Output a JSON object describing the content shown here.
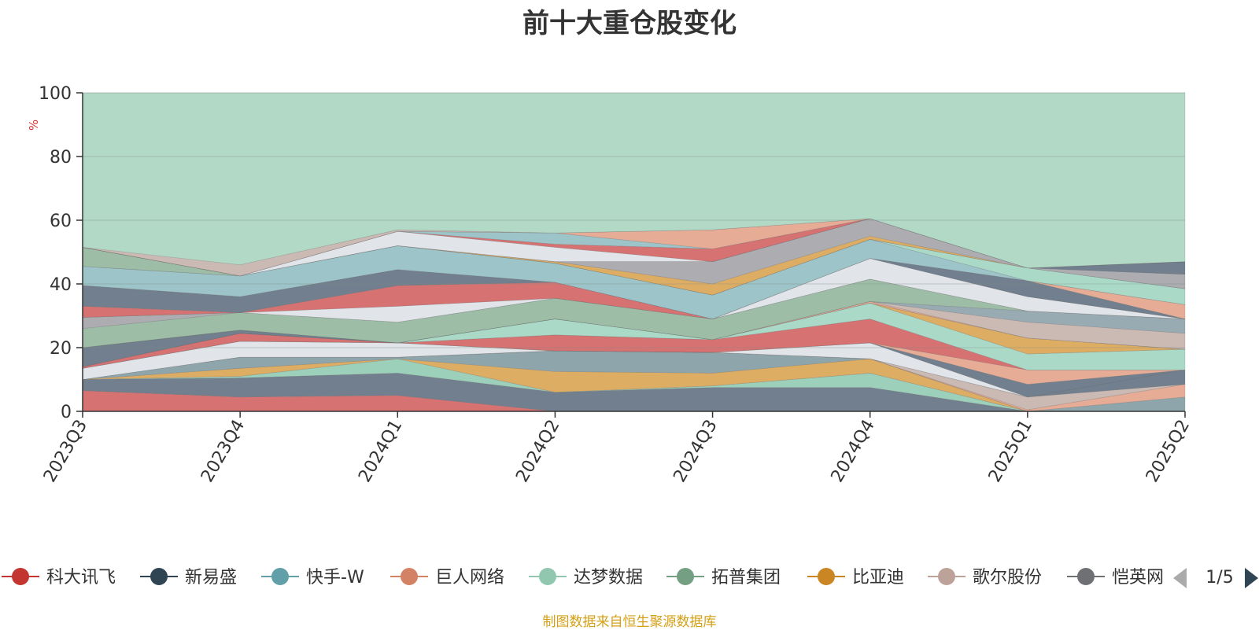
{
  "chart_data": {
    "type": "area",
    "title": "前十大重仓股变化",
    "ylabel": "%",
    "ylim": [
      0,
      100
    ],
    "yticks": [
      0,
      20,
      40,
      60,
      80,
      100
    ],
    "grid": true,
    "x": [
      "2023Q3",
      "2023Q4",
      "2024Q1",
      "2024Q2",
      "2024Q3",
      "2024Q4",
      "2025Q1",
      "2025Q2"
    ],
    "layers": [
      {
        "color": "#d25f5f",
        "lower": [
          0,
          0,
          0,
          0,
          0,
          0,
          0,
          0
        ],
        "upper": [
          6.5,
          4.5,
          5,
          0,
          0,
          0,
          0,
          0
        ]
      },
      {
        "color": "#5d6d7e",
        "lower": [
          6.5,
          4.5,
          5,
          0,
          0,
          0,
          0,
          0
        ],
        "upper": [
          10,
          10.5,
          12,
          6,
          7.5,
          7.5,
          0,
          0
        ]
      },
      {
        "color": "#8fc9b2",
        "lower": [
          10,
          10.5,
          12,
          6,
          7.5,
          7.5,
          0,
          0
        ],
        "upper": [
          10,
          11,
          16.5,
          6,
          8,
          12,
          0,
          0
        ]
      },
      {
        "color": "#d9a24e",
        "lower": [
          10,
          11,
          16.5,
          6,
          8,
          12,
          0,
          0
        ],
        "upper": [
          10,
          13.5,
          16.5,
          12.5,
          12,
          16.5,
          0,
          0
        ]
      },
      {
        "color": "#7e9a9f",
        "lower": [
          10,
          13.5,
          16.5,
          12.5,
          12,
          16.5,
          0,
          0
        ],
        "upper": [
          10,
          17,
          17,
          19,
          18.5,
          16.5,
          0,
          4.5
        ]
      },
      {
        "color": "#e3a088",
        "lower": [
          10,
          17,
          17,
          19,
          18.5,
          16.5,
          0,
          4.5
        ],
        "upper": [
          10,
          17,
          17,
          19,
          18.5,
          16.5,
          0.5,
          8.5
        ]
      },
      {
        "color": "#c4b0aa",
        "lower": [
          10,
          17,
          17,
          19,
          18.5,
          16.5,
          0.5,
          8.5
        ],
        "upper": [
          10,
          17,
          17,
          19,
          18.5,
          16.5,
          4.5,
          8.5
        ]
      },
      {
        "color": "#5d6d7e",
        "lower": [
          10,
          17,
          17,
          19,
          18.5,
          16.5,
          4.5,
          8.5
        ],
        "upper": [
          10,
          17,
          17,
          19,
          18.5,
          16.5,
          4.5,
          13
        ]
      },
      {
        "color": "#dde0e6",
        "lower": [
          10,
          17,
          17,
          19,
          18.5,
          16.5,
          4.5,
          13
        ],
        "upper": [
          13.5,
          22,
          21.5,
          19,
          18.5,
          21.5,
          4.5,
          13
        ]
      },
      {
        "color": "#5d6d7e",
        "lower": [
          13.5,
          22,
          21.5,
          19,
          18.5,
          21.5,
          4.5,
          13
        ],
        "upper": [
          13.5,
          22,
          21.5,
          19,
          18.5,
          21.5,
          8.5,
          13
        ]
      },
      {
        "color": "#e3a088",
        "lower": [
          13.5,
          22,
          21.5,
          19,
          18.5,
          21.5,
          8.5,
          13
        ],
        "upper": [
          13.5,
          22,
          21.5,
          19,
          18.5,
          21.5,
          13,
          13
        ]
      },
      {
        "color": "#d25f5f",
        "lower": [
          13.5,
          22,
          21.5,
          19,
          18.5,
          21.5,
          13,
          13
        ],
        "upper": [
          14,
          24.5,
          21.5,
          24,
          22.5,
          29,
          13,
          13
        ]
      },
      {
        "color": "#9fd4c0",
        "lower": [
          14,
          24.5,
          21.5,
          24,
          22.5,
          29,
          13,
          13
        ],
        "upper": [
          14,
          24.5,
          21.5,
          29,
          22.5,
          34,
          18,
          19.5
        ]
      },
      {
        "color": "#d9a24e",
        "lower": [
          14,
          24.5,
          21.5,
          29,
          22.5,
          34,
          18,
          19.5
        ],
        "upper": [
          14,
          24.5,
          21.5,
          29,
          22.5,
          34,
          23,
          19.5
        ]
      },
      {
        "color": "#5d6d7e",
        "lower": [
          14,
          24.5,
          21.5,
          29,
          22.5,
          34,
          23,
          19.5
        ],
        "upper": [
          20,
          25.5,
          21.5,
          29,
          22.5,
          34,
          23,
          19.5
        ]
      },
      {
        "color": "#e3a088",
        "lower": [
          20,
          25.5,
          21.5,
          29,
          22.5,
          34,
          23,
          19.5
        ],
        "upper": [
          20,
          25.5,
          21.5,
          29,
          22.5,
          34.5,
          23,
          19.5
        ]
      },
      {
        "color": "#c4b0aa",
        "lower": [
          20,
          25.5,
          21.5,
          29,
          22.5,
          34.5,
          23,
          19.5
        ],
        "upper": [
          20,
          25.5,
          21.5,
          29,
          22.5,
          34.5,
          28,
          24.5
        ]
      },
      {
        "color": "#8a9fa8",
        "lower": [
          20,
          25.5,
          21.5,
          29,
          22.5,
          34.5,
          28,
          24.5
        ],
        "upper": [
          20,
          25.5,
          21.5,
          29,
          22.5,
          34.5,
          31.5,
          29
        ]
      },
      {
        "color": "#8fb49b",
        "lower": [
          20,
          25.5,
          21.5,
          29,
          22.5,
          34.5,
          31.5,
          29
        ],
        "upper": [
          26,
          31,
          28,
          35.5,
          29,
          41.5,
          31.5,
          29
        ]
      },
      {
        "color": "#a0a0a6",
        "lower": [
          26,
          31,
          28,
          35.5,
          29,
          41.5,
          31.5,
          29
        ],
        "upper": [
          29.5,
          31,
          28,
          35.5,
          29,
          41.5,
          31.5,
          29
        ]
      },
      {
        "color": "#dde0e6",
        "lower": [
          29.5,
          31,
          28,
          35.5,
          29,
          41.5,
          31.5,
          29
        ],
        "upper": [
          29.5,
          31,
          33,
          35.5,
          29,
          48,
          36,
          29
        ]
      },
      {
        "color": "#d25f5f",
        "lower": [
          29.5,
          31,
          33,
          35.5,
          29,
          48,
          36,
          29
        ],
        "upper": [
          33,
          31,
          39.5,
          40.5,
          29,
          48,
          36,
          29
        ]
      },
      {
        "color": "#5d6d7e",
        "lower": [
          33,
          31,
          39.5,
          40.5,
          29,
          48,
          36,
          29
        ],
        "upper": [
          39.5,
          36,
          44.5,
          40.5,
          29,
          48,
          41,
          29
        ]
      },
      {
        "color": "#e3a088",
        "lower": [
          39.5,
          36,
          44.5,
          40.5,
          29,
          48,
          41,
          29
        ],
        "upper": [
          39.5,
          36,
          44.5,
          40.5,
          29,
          48,
          41,
          33.5
        ]
      },
      {
        "color": "#8fbcc2",
        "lower": [
          39.5,
          36,
          44.5,
          40.5,
          29,
          48,
          41,
          33.5
        ],
        "upper": [
          45.5,
          42.5,
          52,
          46.5,
          36.5,
          54,
          41,
          33.5
        ]
      },
      {
        "color": "#9fd4c0",
        "lower": [
          45.5,
          42.5,
          52,
          46.5,
          36.5,
          54,
          41,
          33.5
        ],
        "upper": [
          45.5,
          42.5,
          52,
          46.5,
          36.5,
          54,
          45,
          38.5
        ]
      },
      {
        "color": "#8fb49b",
        "lower": [
          45.5,
          42.5,
          52,
          46.5,
          36.5,
          54,
          45,
          38.5
        ],
        "upper": [
          51.5,
          42.5,
          52,
          46.5,
          36.5,
          54,
          45,
          38.5
        ]
      },
      {
        "color": "#d9a24e",
        "lower": [
          51.5,
          42.5,
          52,
          46.5,
          36.5,
          54,
          45,
          38.5
        ],
        "upper": [
          51.5,
          42.5,
          52,
          47,
          40,
          55,
          45,
          38.5
        ]
      },
      {
        "color": "#a0a0a6",
        "lower": [
          51.5,
          42.5,
          52,
          47,
          40,
          55,
          45,
          38.5
        ],
        "upper": [
          51.5,
          42.5,
          52,
          47,
          47,
          60.5,
          45,
          43
        ]
      },
      {
        "color": "#5d6d7e",
        "lower": [
          51.5,
          42.5,
          52,
          47,
          47,
          60.5,
          45,
          43
        ],
        "upper": [
          51.5,
          42.5,
          52,
          47,
          47,
          60.5,
          45,
          47
        ]
      },
      {
        "color": "#dde0e6",
        "lower": [
          51.5,
          42.5,
          52,
          47,
          47,
          60.5,
          45,
          47
        ],
        "upper": [
          51.5,
          42.5,
          56.5,
          51.5,
          47,
          60.5,
          45,
          47
        ]
      },
      {
        "color": "#d25f5f",
        "lower": [
          51.5,
          42.5,
          56.5,
          51.5,
          47,
          60.5,
          45,
          47
        ],
        "upper": [
          51.5,
          42.5,
          56.5,
          52.5,
          51,
          60.5,
          45,
          47
        ]
      },
      {
        "color": "#8fbcc2",
        "lower": [
          51.5,
          42.5,
          56.5,
          52.5,
          51,
          60.5,
          45,
          47
        ],
        "upper": [
          51.5,
          42.5,
          56.5,
          56,
          51,
          60.5,
          45,
          47
        ]
      },
      {
        "color": "#e3a088",
        "lower": [
          51.5,
          42.5,
          56.5,
          56,
          51,
          60.5,
          45,
          47
        ],
        "upper": [
          51.5,
          42.5,
          56.5,
          56,
          57,
          60.5,
          45,
          47
        ]
      },
      {
        "color": "#c4b0aa",
        "lower": [
          51.5,
          42.5,
          56.5,
          56,
          57,
          60.5,
          45,
          47
        ],
        "upper": [
          51.5,
          46,
          57,
          56,
          57,
          60.5,
          45,
          47
        ]
      },
      {
        "color": "#b2d8c6",
        "lower": [
          51.5,
          46,
          57,
          56,
          57,
          60.5,
          45,
          47
        ],
        "upper": [
          100,
          100,
          100,
          100,
          100,
          100,
          100,
          100
        ]
      }
    ],
    "legend": {
      "position": "bottom",
      "page": "1/5",
      "items": [
        {
          "name": "科大讯飞",
          "color": "#c23531"
        },
        {
          "name": "新易盛",
          "color": "#2f4554"
        },
        {
          "name": "快手-W",
          "color": "#61a0a8"
        },
        {
          "name": "巨人网络",
          "color": "#d48265"
        },
        {
          "name": "达梦数据",
          "color": "#91c7ae"
        },
        {
          "name": "拓普集团",
          "color": "#749f83"
        },
        {
          "name": "比亚迪",
          "color": "#ca8622"
        },
        {
          "name": "歌尔股份",
          "color": "#bda29a"
        },
        {
          "name": "恺英网",
          "color": "#6e7074"
        }
      ]
    },
    "source_note": "制图数据来自恒生聚源数据库"
  }
}
